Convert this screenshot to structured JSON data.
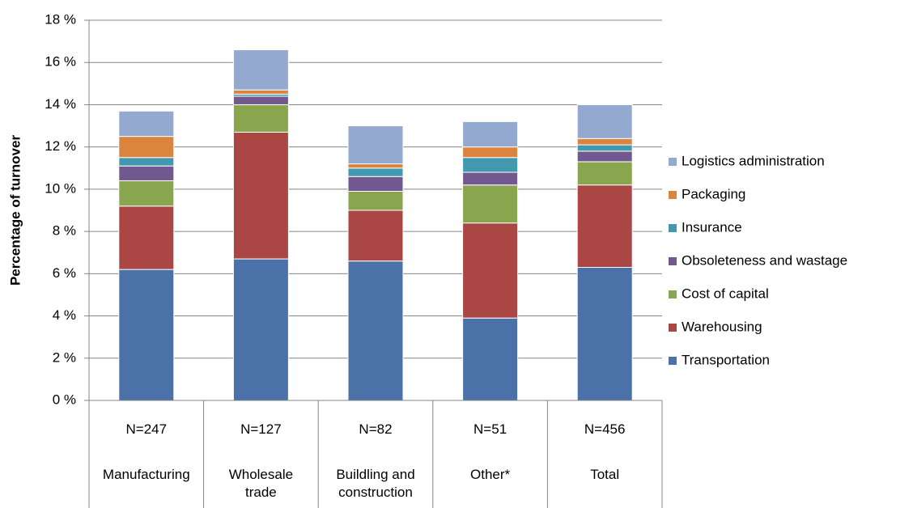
{
  "chart_data": {
    "type": "stacked_bar",
    "y_axis_label": "Percentage of turnover",
    "categories": [
      "Manufacturing",
      "Wholesale trade",
      "Buildling and construction",
      "Other*",
      "Total"
    ],
    "sample_sizes": [
      "N=247",
      "N=127",
      "N=82",
      "N=51",
      "N=456"
    ],
    "series": [
      {
        "name": "Transportation",
        "color": "#4a72a8",
        "values": [
          6.2,
          6.7,
          6.6,
          3.9,
          6.3
        ]
      },
      {
        "name": "Warehousing",
        "color": "#aa4643",
        "values": [
          3.0,
          6.0,
          2.4,
          4.5,
          3.9
        ]
      },
      {
        "name": "Cost of capital",
        "color": "#89a54e",
        "values": [
          1.2,
          1.3,
          0.9,
          1.8,
          1.1
        ]
      },
      {
        "name": "Obsoleteness and wastage",
        "color": "#71588f",
        "values": [
          0.7,
          0.4,
          0.7,
          0.6,
          0.5
        ]
      },
      {
        "name": "Insurance",
        "color": "#4198af",
        "values": [
          0.4,
          0.1,
          0.4,
          0.7,
          0.3
        ]
      },
      {
        "name": "Packaging",
        "color": "#db843d",
        "values": [
          1.0,
          0.2,
          0.2,
          0.5,
          0.3
        ]
      },
      {
        "name": "Logistics administration",
        "color": "#93a9cf",
        "values": [
          1.2,
          1.9,
          1.8,
          1.2,
          1.6
        ]
      }
    ],
    "ylim": [
      0,
      18
    ],
    "yticks": [
      {
        "value": 0,
        "label": "0 %"
      },
      {
        "value": 2,
        "label": "2 %"
      },
      {
        "value": 4,
        "label": "4 %"
      },
      {
        "value": 6,
        "label": "6 %"
      },
      {
        "value": 8,
        "label": "8 %"
      },
      {
        "value": 10,
        "label": "10 %"
      },
      {
        "value": 12,
        "label": "12 %"
      },
      {
        "value": 14,
        "label": "14 %"
      },
      {
        "value": 16,
        "label": "16 %"
      },
      {
        "value": 18,
        "label": "18 %"
      }
    ],
    "grid": true
  }
}
